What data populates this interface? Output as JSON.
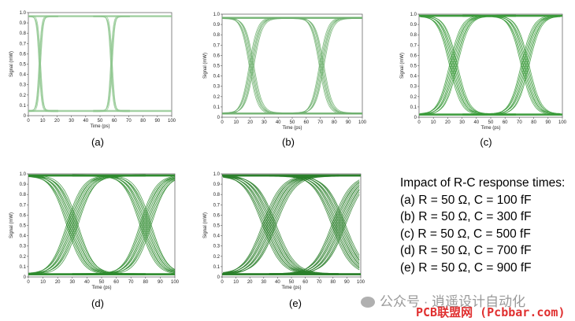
{
  "chart_data": [
    {
      "type": "line",
      "id": "a",
      "panel_label": "(a)",
      "xlabel": "Time (ps)",
      "ylabel": "Signal (mW)",
      "xlim": [
        0,
        100
      ],
      "ylim": [
        0,
        1.0
      ],
      "xticks": [
        "0",
        "10",
        "20",
        "30",
        "40",
        "50",
        "60",
        "70",
        "80",
        "90",
        "100"
      ],
      "yticks": [
        "0",
        "0.1",
        "0.2",
        "0.3",
        "0.4",
        "0.5",
        "0.6",
        "0.7",
        "0.8",
        "0.9",
        "1.0"
      ],
      "signal_low": 0.04,
      "signal_high": 0.97,
      "crossing_times": [
        8,
        58
      ],
      "rise_fall_time_ps": 4,
      "color": "#8dc58d"
    },
    {
      "type": "line",
      "id": "b",
      "panel_label": "(b)",
      "xlabel": "Time (ps)",
      "ylabel": "Signal (mW)",
      "xlim": [
        0,
        100
      ],
      "ylim": [
        0,
        1.0
      ],
      "xticks": [
        "0",
        "10",
        "20",
        "30",
        "40",
        "50",
        "60",
        "70",
        "80",
        "90",
        "100"
      ],
      "yticks": [
        "0",
        "0.1",
        "0.2",
        "0.3",
        "0.4",
        "0.5",
        "0.6",
        "0.7",
        "0.8",
        "0.9",
        "1.0"
      ],
      "signal_low": 0.03,
      "signal_high": 0.97,
      "crossing_times": [
        21,
        71
      ],
      "rise_fall_time_ps": 13,
      "color": "#6fb06f"
    },
    {
      "type": "line",
      "id": "c",
      "panel_label": "(c)",
      "xlabel": "Time (ps)",
      "ylabel": "Signal (mW)",
      "xlim": [
        0,
        100
      ],
      "ylim": [
        0,
        1.0
      ],
      "xticks": [
        "0",
        "10",
        "20",
        "30",
        "40",
        "50",
        "60",
        "70",
        "80",
        "90",
        "100"
      ],
      "yticks": [
        "0",
        "0.1",
        "0.2",
        "0.3",
        "0.4",
        "0.5",
        "0.6",
        "0.7",
        "0.8",
        "0.9",
        "1.0"
      ],
      "signal_low": 0.02,
      "signal_high": 0.99,
      "crossing_times": [
        24,
        74
      ],
      "rise_fall_time_ps": 18,
      "color": "#3a9a3a"
    },
    {
      "type": "line",
      "id": "d",
      "panel_label": "(d)",
      "xlabel": "Time (ps)",
      "ylabel": "Signal (mW)",
      "xlim": [
        0,
        100
      ],
      "ylim": [
        0,
        1.0
      ],
      "xticks": [
        "0",
        "10",
        "20",
        "30",
        "40",
        "50",
        "60",
        "70",
        "80",
        "90",
        "100"
      ],
      "yticks": [
        "0",
        "0.1",
        "0.2",
        "0.3",
        "0.4",
        "0.5",
        "0.6",
        "0.7",
        "0.8",
        "0.9",
        "1.0"
      ],
      "signal_low": 0.02,
      "signal_high": 0.99,
      "crossing_times": [
        30,
        80
      ],
      "rise_fall_time_ps": 24,
      "color": "#2e8b2e"
    },
    {
      "type": "line",
      "id": "e",
      "panel_label": "(e)",
      "xlabel": "Time (ps)",
      "ylabel": "Signal (mW)",
      "xlim": [
        0,
        100
      ],
      "ylim": [
        0,
        1.0
      ],
      "xticks": [
        "0",
        "10",
        "20",
        "30",
        "40",
        "50",
        "60",
        "70",
        "80",
        "90",
        "100"
      ],
      "yticks": [
        "0",
        "0.1",
        "0.2",
        "0.3",
        "0.4",
        "0.5",
        "0.6",
        "0.7",
        "0.8",
        "0.9",
        "1.0"
      ],
      "signal_low": 0.02,
      "signal_high": 0.99,
      "crossing_times": [
        34,
        84
      ],
      "rise_fall_time_ps": 30,
      "color": "#2a7f2a"
    }
  ],
  "legend": {
    "title": "Impact of R-C response times:",
    "items": [
      "(a) R = 50 Ω, C = 100 fF",
      "(b) R = 50 Ω, C = 300 fF",
      "(c) R = 50 Ω, C = 500 fF",
      "(d) R = 50 Ω, C = 700 fF",
      "(e) R = 50 Ω, C = 900 fF"
    ]
  },
  "watermark": {
    "text": "公众号 · 逍遥设计自动化",
    "source": "PCB联盟网 (Pcbbar.com)",
    "text_color": "#9a9a9a",
    "source_color": "#e03030"
  }
}
